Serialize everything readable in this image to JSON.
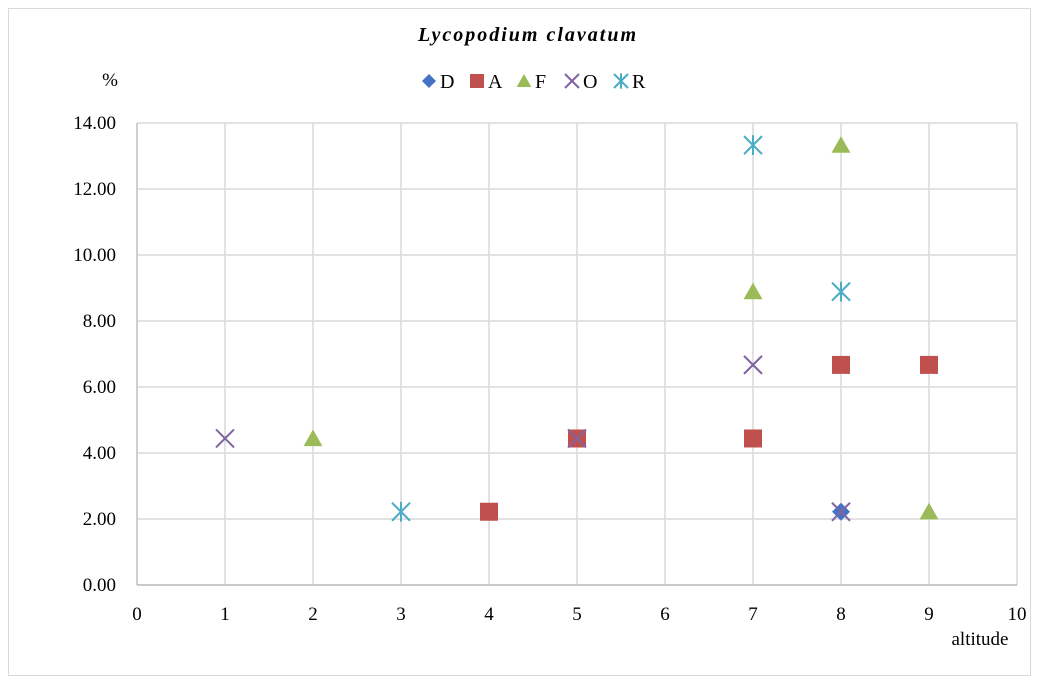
{
  "chart_data": {
    "type": "scatter",
    "title": "Lycopodium clavatum",
    "ylabel": "%",
    "xlabel": "altitude",
    "xlim": [
      0,
      10
    ],
    "ylim": [
      0,
      14
    ],
    "x_ticks": [
      "0",
      "1",
      "2",
      "3",
      "4",
      "5",
      "6",
      "7",
      "8",
      "9",
      "10"
    ],
    "y_ticks": [
      "0.00",
      "2.00",
      "4.00",
      "6.00",
      "8.00",
      "10.00",
      "12.00",
      "14.00"
    ],
    "grid": true,
    "legend_position": "top",
    "series": [
      {
        "name": "D",
        "marker": "diamond",
        "color": "#4472C4",
        "points": [
          [
            8,
            2.22
          ]
        ]
      },
      {
        "name": "A",
        "marker": "square",
        "color": "#C0504D",
        "points": [
          [
            4,
            2.22
          ],
          [
            5,
            4.44
          ],
          [
            7,
            4.44
          ],
          [
            8,
            6.67
          ],
          [
            9,
            6.67
          ]
        ]
      },
      {
        "name": "F",
        "marker": "triangle",
        "color": "#9BBB59",
        "points": [
          [
            2,
            4.44
          ],
          [
            7,
            8.89
          ],
          [
            8,
            13.33
          ],
          [
            9,
            2.22
          ]
        ]
      },
      {
        "name": "O",
        "marker": "x",
        "color": "#8064A2",
        "points": [
          [
            1,
            4.44
          ],
          [
            5,
            4.44
          ],
          [
            7,
            6.67
          ],
          [
            8,
            2.22
          ]
        ]
      },
      {
        "name": "R",
        "marker": "star",
        "color": "#4BACC6",
        "points": [
          [
            3,
            2.22
          ],
          [
            7,
            13.33
          ],
          [
            8,
            8.89
          ]
        ]
      }
    ]
  }
}
